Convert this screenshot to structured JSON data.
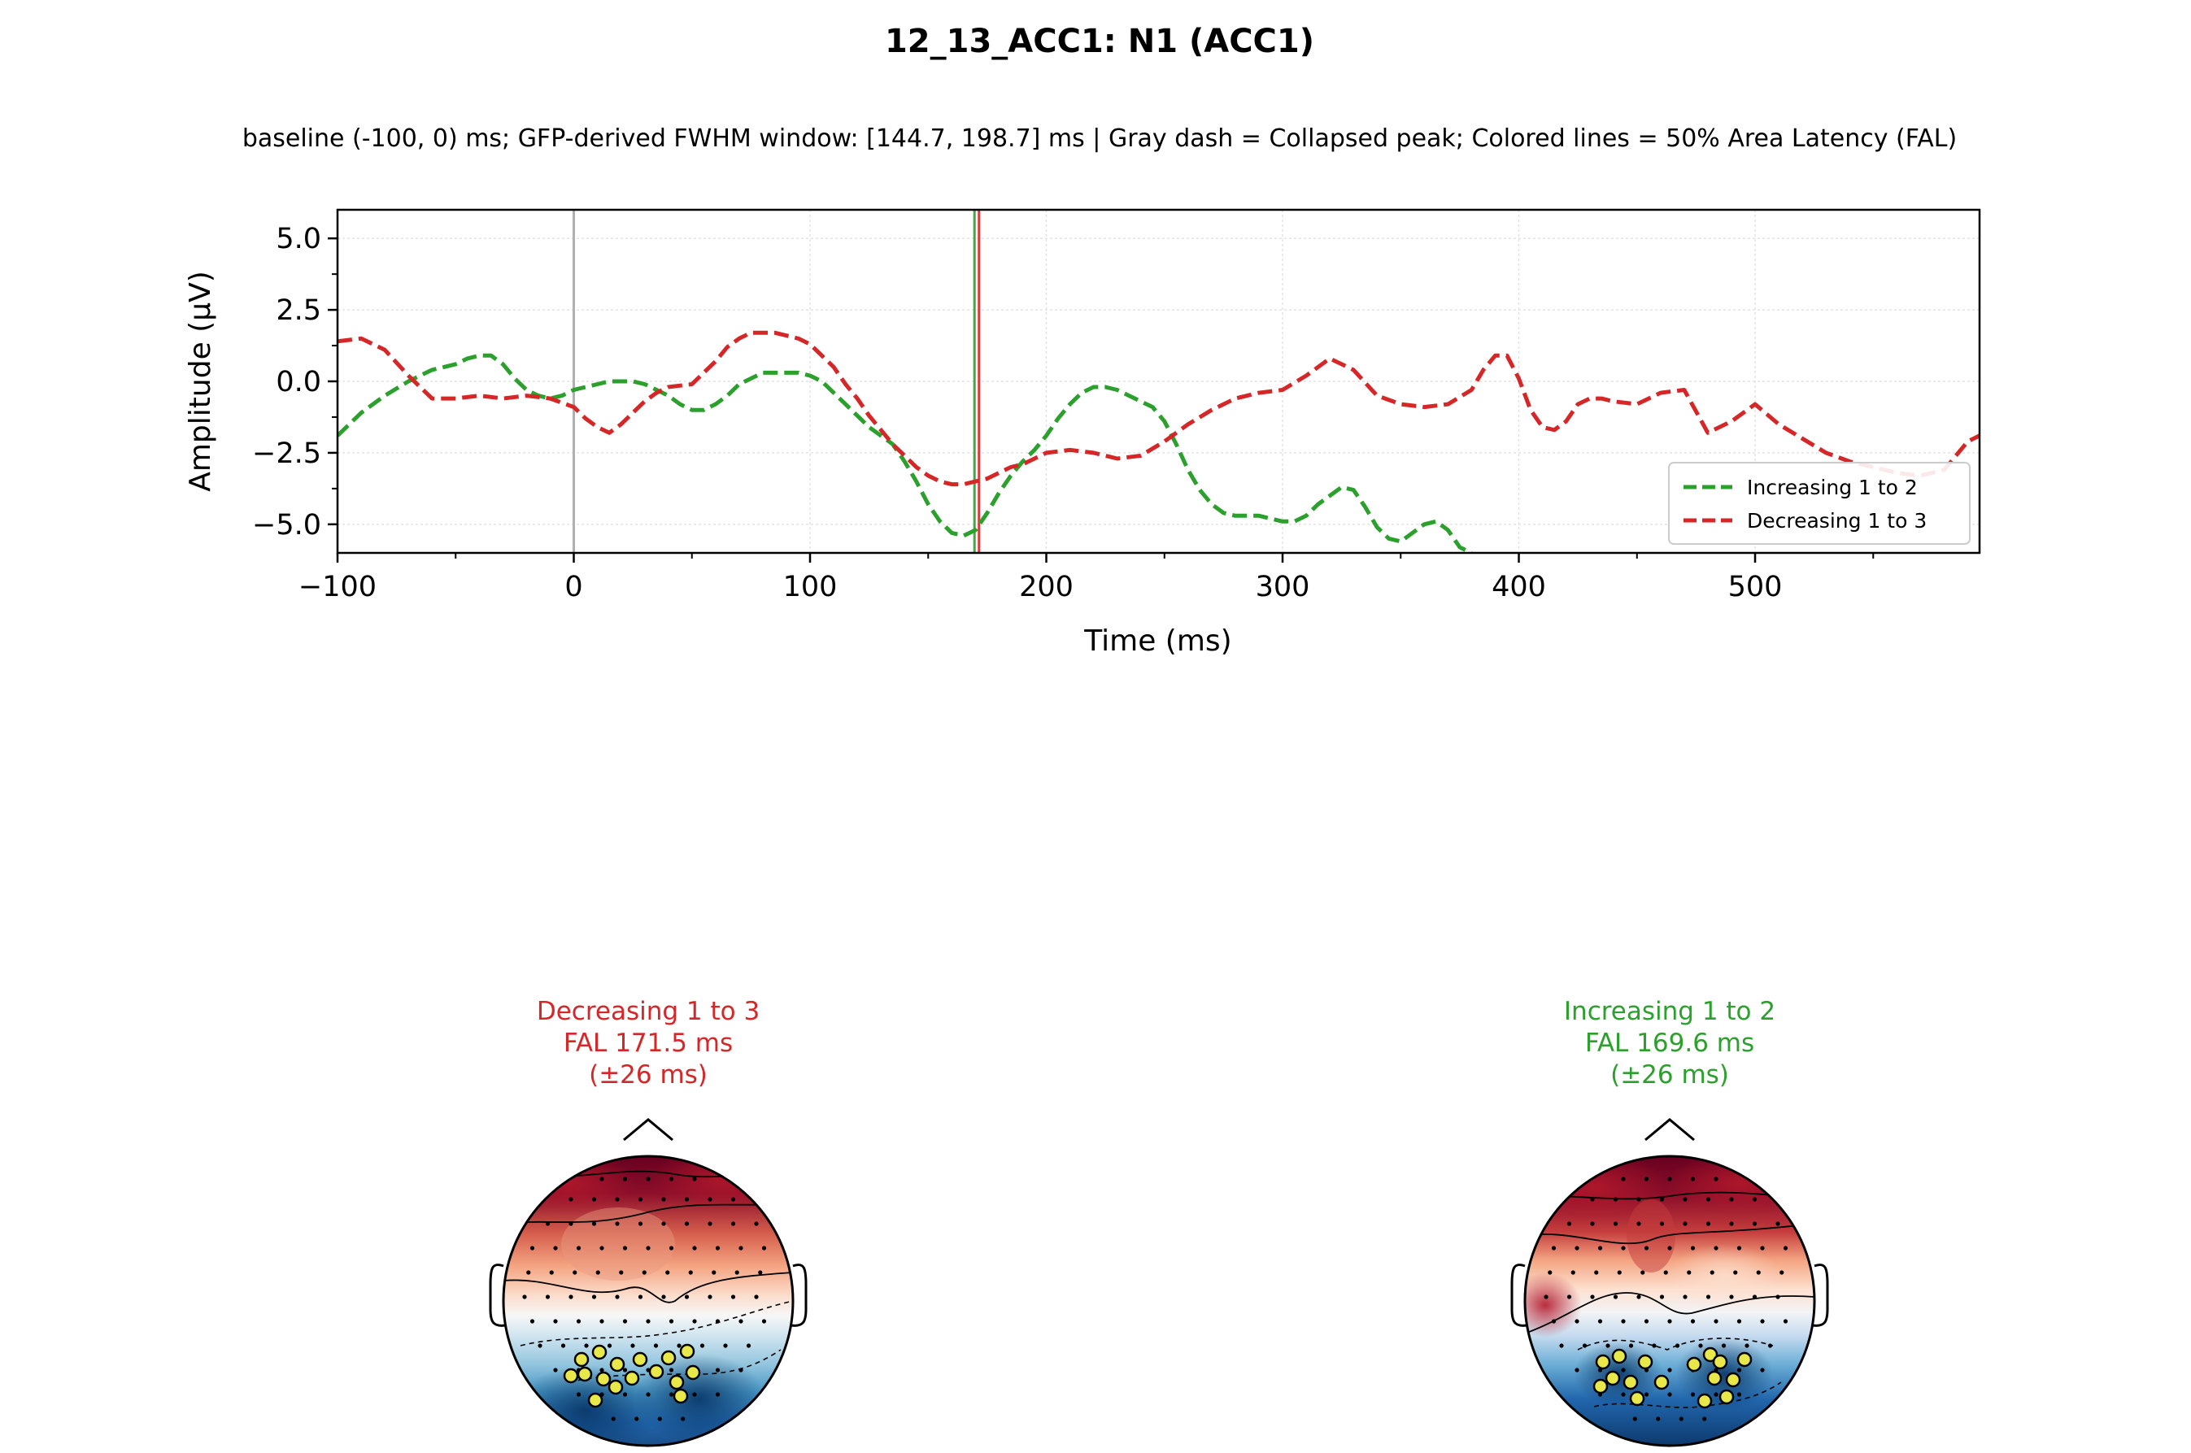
{
  "figure": {
    "title": "12_13_ACC1: N1 (ACC1)",
    "subtitle": "baseline (-100, 0) ms; GFP-derived FWHM window: [144.7, 198.7] ms | Gray dash = Collapsed peak; Colored lines = 50% Area Latency (FAL)"
  },
  "chart_data": {
    "type": "line",
    "xlabel": "Time (ms)",
    "ylabel": "Amplitude (µV)",
    "xlim": [
      -100,
      595
    ],
    "ylim": [
      -6,
      6
    ],
    "xticks": [
      -100,
      0,
      100,
      200,
      300,
      400,
      500
    ],
    "xtick_labels": [
      "−100",
      "0",
      "100",
      "200",
      "300",
      "400",
      "500"
    ],
    "yticks": [
      -5,
      -2.5,
      0,
      2.5,
      5
    ],
    "ytick_labels": [
      "−5.0",
      "−2.5",
      "0.0",
      "2.5",
      "5.0"
    ],
    "grid": true,
    "legend_position": "lower-right",
    "stimulus_line_x": 0,
    "series": [
      {
        "name": "Increasing 1 to 2",
        "color": "#2ca02c",
        "style": "dashed",
        "fal_ms": 169.6,
        "x": [
          -100,
          -90,
          -80,
          -70,
          -60,
          -50,
          -45,
          -40,
          -35,
          -30,
          -25,
          -20,
          -15,
          -10,
          -5,
          0,
          5,
          10,
          15,
          20,
          25,
          30,
          35,
          40,
          45,
          50,
          55,
          60,
          65,
          70,
          75,
          80,
          85,
          90,
          95,
          100,
          105,
          110,
          115,
          120,
          125,
          130,
          135,
          140,
          145,
          150,
          155,
          160,
          165,
          170,
          175,
          180,
          185,
          190,
          195,
          200,
          205,
          210,
          215,
          220,
          225,
          230,
          235,
          240,
          245,
          250,
          255,
          260,
          265,
          270,
          275,
          280,
          285,
          290,
          295,
          300,
          305,
          310,
          315,
          320,
          325,
          330,
          335,
          340,
          345,
          350,
          355,
          360,
          365,
          370,
          375,
          380
        ],
        "y": [
          -1.9,
          -1.1,
          -0.5,
          0,
          0.4,
          0.6,
          0.8,
          0.9,
          0.9,
          0.6,
          0.1,
          -0.3,
          -0.5,
          -0.6,
          -0.5,
          -0.3,
          -0.2,
          -0.1,
          0,
          0,
          0,
          -0.1,
          -0.3,
          -0.5,
          -0.8,
          -1,
          -1,
          -0.8,
          -0.5,
          -0.1,
          0.1,
          0.3,
          0.3,
          0.3,
          0.3,
          0.2,
          0,
          -0.4,
          -0.8,
          -1.2,
          -1.6,
          -1.9,
          -2.2,
          -2.8,
          -3.5,
          -4.3,
          -4.9,
          -5.3,
          -5.4,
          -5.2,
          -4.6,
          -3.9,
          -3.3,
          -2.8,
          -2.4,
          -1.9,
          -1.3,
          -0.8,
          -0.4,
          -0.2,
          -0.2,
          -0.3,
          -0.5,
          -0.7,
          -0.9,
          -1.4,
          -2.2,
          -3.1,
          -3.8,
          -4.3,
          -4.6,
          -4.7,
          -4.7,
          -4.7,
          -4.8,
          -4.9,
          -4.9,
          -4.7,
          -4.3,
          -4,
          -3.7,
          -3.8,
          -4.4,
          -5.1,
          -5.5,
          -5.6,
          -5.3,
          -5,
          -4.9,
          -5.2,
          -5.8,
          -6
        ]
      },
      {
        "name": "Decreasing 1 to 3",
        "color": "#d62728",
        "style": "dashed",
        "fal_ms": 171.5,
        "x": [
          -100,
          -90,
          -80,
          -70,
          -60,
          -50,
          -40,
          -30,
          -20,
          -10,
          0,
          5,
          10,
          15,
          20,
          25,
          30,
          35,
          40,
          50,
          55,
          60,
          65,
          70,
          75,
          80,
          85,
          90,
          95,
          100,
          105,
          110,
          115,
          120,
          125,
          130,
          135,
          140,
          145,
          150,
          155,
          160,
          165,
          170,
          175,
          180,
          185,
          190,
          195,
          200,
          210,
          220,
          230,
          240,
          250,
          260,
          270,
          280,
          290,
          300,
          310,
          320,
          330,
          340,
          350,
          360,
          370,
          380,
          385,
          390,
          395,
          400,
          405,
          410,
          415,
          420,
          425,
          430,
          435,
          440,
          450,
          460,
          470,
          480,
          490,
          500,
          510,
          520,
          530,
          540,
          550,
          560,
          570,
          580,
          590,
          595
        ],
        "y": [
          1.4,
          1.5,
          1.1,
          0.2,
          -0.6,
          -0.6,
          -0.5,
          -0.6,
          -0.5,
          -0.6,
          -0.9,
          -1.3,
          -1.6,
          -1.8,
          -1.5,
          -1.1,
          -0.7,
          -0.4,
          -0.2,
          -0.1,
          0.3,
          0.7,
          1.2,
          1.5,
          1.7,
          1.7,
          1.7,
          1.6,
          1.5,
          1.3,
          0.9,
          0.5,
          -0.1,
          -0.6,
          -1.2,
          -1.7,
          -2.2,
          -2.6,
          -3,
          -3.3,
          -3.5,
          -3.6,
          -3.6,
          -3.5,
          -3.4,
          -3.2,
          -3,
          -2.9,
          -2.7,
          -2.5,
          -2.4,
          -2.5,
          -2.7,
          -2.6,
          -2.1,
          -1.5,
          -1,
          -0.6,
          -0.4,
          -0.3,
          0.2,
          0.8,
          0.4,
          -0.5,
          -0.8,
          -0.9,
          -0.8,
          -0.3,
          0.4,
          0.9,
          0.9,
          0.1,
          -1,
          -1.6,
          -1.7,
          -1.4,
          -0.8,
          -0.6,
          -0.6,
          -0.7,
          -0.8,
          -0.4,
          -0.3,
          -1.8,
          -1.4,
          -0.8,
          -1.5,
          -2,
          -2.5,
          -2.8,
          -3,
          -3.2,
          -3.3,
          -3.1,
          -2.1,
          -1.9
        ]
      }
    ]
  },
  "topomaps": [
    {
      "label": "Decreasing 1 to 3",
      "fal_text": "FAL 171.5 ms",
      "window_text": "(±26 ms)",
      "color": "#d62728"
    },
    {
      "label": "Increasing 1 to 2",
      "fal_text": "FAL 169.6 ms",
      "window_text": "(±26 ms)",
      "color": "#2ca02c"
    }
  ]
}
